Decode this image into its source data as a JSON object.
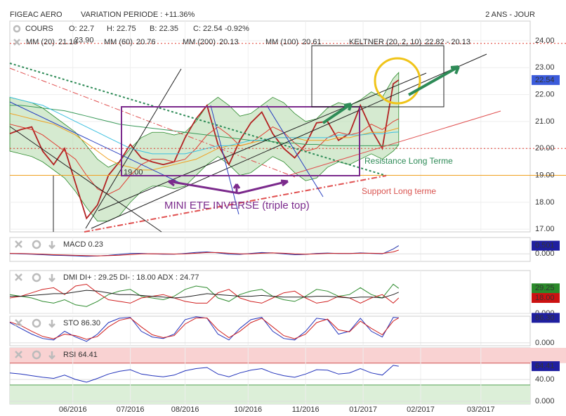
{
  "header": {
    "symbol": "FIGEAC AERO",
    "variation": "VARIATION PERIODE : +11.36%",
    "period": "2 ANS - JOUR",
    "quote": [
      "O: 22.7",
      "H: 22.75",
      "B: 22.35",
      "C: 22.54",
      "-0.92%"
    ]
  },
  "chart_data": [
    {
      "type": "line",
      "grid": true,
      "x": [
        0,
        4,
        8,
        12,
        16,
        20,
        24,
        28,
        32,
        36,
        40,
        44,
        48,
        52,
        56,
        60,
        64,
        68,
        72,
        76,
        80,
        84,
        88,
        92,
        96,
        100,
        104,
        108,
        112,
        116,
        120,
        124,
        128,
        132,
        136,
        140,
        142
      ],
      "xlim": [
        0,
        190
      ],
      "xticks": [
        {
          "value": 23,
          "label": "06/2016"
        },
        {
          "value": 44,
          "label": "07/2016"
        },
        {
          "value": 64,
          "label": "08/2016"
        },
        {
          "value": 87,
          "label": "10/2016"
        },
        {
          "value": 108,
          "label": "11/2016"
        },
        {
          "value": 129,
          "label": "01/2017"
        },
        {
          "value": 150,
          "label": "02/2017"
        },
        {
          "value": 172,
          "label": "03/2017"
        }
      ],
      "ylim": [
        16.9,
        24.73
      ],
      "yticks": [
        {
          "value": 17,
          "label": "17.00"
        },
        {
          "value": 18,
          "label": "18.00"
        },
        {
          "value": 19,
          "label": "19.00"
        },
        {
          "value": 20,
          "label": "20.00"
        },
        {
          "value": 21,
          "label": "21.00"
        },
        {
          "value": 22,
          "label": "22.00"
        },
        {
          "value": 23,
          "label": "23.00"
        },
        {
          "value": 24,
          "label": "24.00"
        }
      ],
      "series": [
        {
          "name": "COURS",
          "color": "#b22222",
          "values": [
            20.55,
            20.7,
            20.8,
            19.9,
            19.4,
            20.0,
            18.7,
            17.4,
            17.9,
            19.0,
            19.5,
            20.15,
            19.65,
            19.5,
            19.4,
            19.5,
            20.4,
            21.1,
            21.6,
            20.15,
            19.4,
            20.3,
            20.95,
            21.35,
            20.55,
            20.0,
            19.65,
            20.15,
            20.95,
            21.0,
            20.3,
            20.55,
            21.6,
            20.7,
            20.0,
            22.4,
            22.54
          ],
          "current": {
            "value": 22.54,
            "label": "22.54",
            "color": "#3b5bdb"
          }
        },
        {
          "name": "MM (20)",
          "legend_value": "21.10",
          "color": "#e03c31",
          "values": [
            20.9,
            20.8,
            20.7,
            20.5,
            20.2,
            19.9,
            19.6,
            19.0,
            18.5,
            18.3,
            18.5,
            19.0,
            19.4,
            19.6,
            19.6,
            19.5,
            19.6,
            20.0,
            20.5,
            20.8,
            20.5,
            20.1,
            20.2,
            20.5,
            20.8,
            20.6,
            20.2,
            19.9,
            20.0,
            20.4,
            20.6,
            20.5,
            20.6,
            20.9,
            20.7,
            21.0,
            21.1
          ]
        },
        {
          "name": "MM (60)",
          "legend_value": "20.76",
          "color": "#f0a020",
          "values": [
            21.3,
            21.2,
            21.1,
            21.0,
            20.9,
            20.7,
            20.5,
            20.2,
            19.9,
            19.6,
            19.4,
            19.3,
            19.2,
            19.2,
            19.3,
            19.4,
            19.5,
            19.6,
            19.8,
            20.0,
            20.1,
            20.1,
            20.2,
            20.3,
            20.4,
            20.4,
            20.4,
            20.3,
            20.3,
            20.3,
            20.4,
            20.4,
            20.5,
            20.6,
            20.6,
            20.7,
            20.76
          ]
        },
        {
          "name": "MM (200)",
          "legend_value": "20.13",
          "color": "#3a9a5a",
          "values": [
            21.6,
            21.6,
            21.55,
            21.5,
            21.45,
            21.4,
            21.3,
            21.2,
            21.1,
            21.0,
            20.9,
            20.85,
            20.8,
            20.75,
            20.7,
            20.65,
            20.6,
            20.55,
            20.5,
            20.45,
            20.4,
            20.35,
            20.3,
            20.3,
            20.25,
            20.2,
            20.2,
            20.15,
            20.15,
            20.1,
            20.1,
            20.1,
            20.1,
            20.1,
            20.1,
            20.12,
            20.13
          ]
        },
        {
          "name": "MM (100)",
          "legend_value": "20.61",
          "color": "#3cc0e0",
          "values": [
            21.9,
            21.8,
            21.7,
            21.6,
            21.4,
            21.2,
            21.0,
            20.8,
            20.6,
            20.4,
            20.2,
            20.0,
            19.9,
            19.8,
            19.8,
            19.8,
            19.8,
            19.9,
            20.0,
            20.1,
            20.1,
            20.2,
            20.3,
            20.3,
            20.4,
            20.4,
            20.4,
            20.4,
            20.4,
            20.4,
            20.5,
            20.5,
            20.5,
            20.55,
            20.55,
            20.6,
            20.61
          ]
        }
      ],
      "keltner": {
        "name": "KELTNER (20, 2, 10)",
        "legend_value": "22.82 - 20.13",
        "color": "#2e8b2e",
        "upper": [
          21.9,
          21.8,
          21.7,
          21.5,
          21.2,
          20.9,
          20.6,
          20.1,
          19.6,
          19.3,
          19.5,
          20.0,
          20.4,
          20.6,
          20.6,
          20.5,
          20.6,
          21.0,
          21.6,
          21.9,
          21.6,
          21.2,
          21.3,
          21.6,
          21.9,
          21.7,
          21.3,
          21.0,
          21.1,
          21.5,
          21.7,
          21.6,
          21.8,
          22.1,
          21.9,
          22.6,
          22.82
        ],
        "lower": [
          19.9,
          19.8,
          19.7,
          19.5,
          19.2,
          18.9,
          18.4,
          17.8,
          17.3,
          17.3,
          17.5,
          18.0,
          18.4,
          18.6,
          18.6,
          18.5,
          18.6,
          19.0,
          19.4,
          19.7,
          19.4,
          19.0,
          19.1,
          19.4,
          19.7,
          19.5,
          19.1,
          18.8,
          18.9,
          19.3,
          19.5,
          19.4,
          19.6,
          19.8,
          19.6,
          19.9,
          20.13
        ]
      },
      "levels": [
        {
          "value": 23.9,
          "label": "23.90",
          "color": "#e03c31"
        },
        {
          "value": 20.0,
          "color": "#e03c31"
        },
        {
          "value": 19.0,
          "label": "19.00",
          "color": "#f0a020"
        }
      ],
      "annotations": [
        "MINI ETE INVERSE (triple top)",
        "Resistance Long Terme",
        "Support Long terme"
      ]
    },
    {
      "type": "line",
      "title": "MACD 0.23",
      "ylim": [
        -0.46,
        1.0
      ],
      "yticks": [
        {
          "value": 0,
          "label": "0.000"
        }
      ],
      "series": [
        {
          "color": "#2233aa",
          "values": [
            0.02,
            0.0,
            -0.02,
            -0.05,
            -0.08,
            -0.1,
            -0.12,
            -0.15,
            -0.13,
            -0.09,
            -0.03,
            0.03,
            0.03,
            0.0,
            -0.02,
            -0.02,
            0.03,
            0.09,
            0.12,
            0.06,
            -0.02,
            -0.03,
            0.03,
            0.08,
            0.06,
            0.0,
            -0.05,
            -0.03,
            0.03,
            0.05,
            0.02,
            0.02,
            0.06,
            0.03,
            0.0,
            0.3,
            0.501
          ],
          "current": {
            "value": 0.501,
            "label": "0.501",
            "color": "#1f1fa0"
          }
        },
        {
          "color": "#d02020",
          "values": [
            0.03,
            0.02,
            0.0,
            -0.02,
            -0.05,
            -0.07,
            -0.09,
            -0.11,
            -0.12,
            -0.11,
            -0.08,
            -0.04,
            0.0,
            0.01,
            0.0,
            -0.01,
            0.0,
            0.04,
            0.08,
            0.08,
            0.04,
            0.0,
            0.0,
            0.04,
            0.06,
            0.04,
            0.0,
            -0.02,
            0.0,
            0.03,
            0.03,
            0.02,
            0.04,
            0.04,
            0.02,
            0.12,
            0.23
          ]
        }
      ]
    },
    {
      "type": "line",
      "title": "DMI DI+ : 29.25 DI- : 18.00 ADX : 24.77",
      "ylim": [
        0,
        50
      ],
      "yticks": [
        {
          "value": 0,
          "label": "0.000"
        }
      ],
      "series": [
        {
          "color": "#2e8b2e",
          "values": [
            22,
            20,
            18,
            14,
            12,
            16,
            10,
            8,
            14,
            22,
            26,
            28,
            20,
            18,
            16,
            20,
            28,
            32,
            30,
            18,
            14,
            22,
            26,
            28,
            20,
            16,
            14,
            20,
            28,
            26,
            20,
            22,
            30,
            22,
            18,
            34,
            29.25
          ],
          "current": {
            "value": 29.25,
            "label": "29.25",
            "color": "#2a8a2a"
          }
        },
        {
          "color": "#d02020",
          "values": [
            18,
            20,
            24,
            28,
            30,
            22,
            32,
            34,
            24,
            16,
            14,
            12,
            18,
            20,
            22,
            18,
            14,
            12,
            12,
            24,
            28,
            18,
            14,
            12,
            18,
            24,
            26,
            18,
            12,
            14,
            20,
            18,
            12,
            18,
            22,
            12,
            18
          ],
          "current": {
            "value": 18,
            "label": "18.00",
            "color": "#cc1111"
          }
        },
        {
          "color": "#222222",
          "values": [
            20,
            20,
            21,
            22,
            23,
            23,
            25,
            27,
            26,
            24,
            22,
            22,
            21,
            20,
            19,
            18,
            19,
            21,
            23,
            22,
            21,
            20,
            20,
            21,
            20,
            19,
            19,
            19,
            20,
            20,
            19,
            18,
            19,
            19,
            18,
            22,
            24.77
          ]
        }
      ]
    },
    {
      "type": "line",
      "title": "STO 86.30",
      "ylim": [
        -10,
        92
      ],
      "yticks": [
        {
          "value": 0,
          "label": "0.000"
        }
      ],
      "series": [
        {
          "color": "#2233bb",
          "values": [
            70,
            50,
            30,
            15,
            10,
            40,
            20,
            5,
            30,
            70,
            85,
            88,
            40,
            20,
            15,
            30,
            80,
            90,
            85,
            30,
            10,
            50,
            80,
            88,
            40,
            15,
            10,
            40,
            85,
            80,
            30,
            40,
            85,
            40,
            20,
            88,
            86.3
          ],
          "current": {
            "value": 86.3,
            "label": "86.30",
            "color": "#1f1fa0"
          }
        },
        {
          "color": "#d02020",
          "values": [
            72,
            60,
            40,
            22,
            14,
            30,
            25,
            12,
            22,
            55,
            78,
            86,
            55,
            28,
            18,
            25,
            65,
            86,
            86,
            45,
            18,
            40,
            70,
            85,
            55,
            25,
            14,
            30,
            70,
            82,
            45,
            38,
            75,
            50,
            28,
            75,
            86.3
          ]
        }
      ]
    },
    {
      "type": "line",
      "title": "RSI 64.41",
      "ylim": [
        -5,
        98
      ],
      "yticks": [
        {
          "value": 0,
          "label": "0.000"
        },
        {
          "value": 40,
          "label": "40.00"
        }
      ],
      "overbought": 70,
      "oversold": 30,
      "series": [
        {
          "color": "#2233bb",
          "values": [
            52,
            50,
            47,
            44,
            42,
            48,
            40,
            35,
            42,
            50,
            55,
            58,
            50,
            47,
            45,
            48,
            56,
            60,
            62,
            50,
            45,
            52,
            57,
            60,
            52,
            47,
            44,
            50,
            58,
            57,
            50,
            52,
            60,
            52,
            48,
            66,
            64.41
          ],
          "current": {
            "value": 64.41,
            "label": "64.41",
            "color": "#1f1fa0"
          }
        }
      ]
    }
  ]
}
